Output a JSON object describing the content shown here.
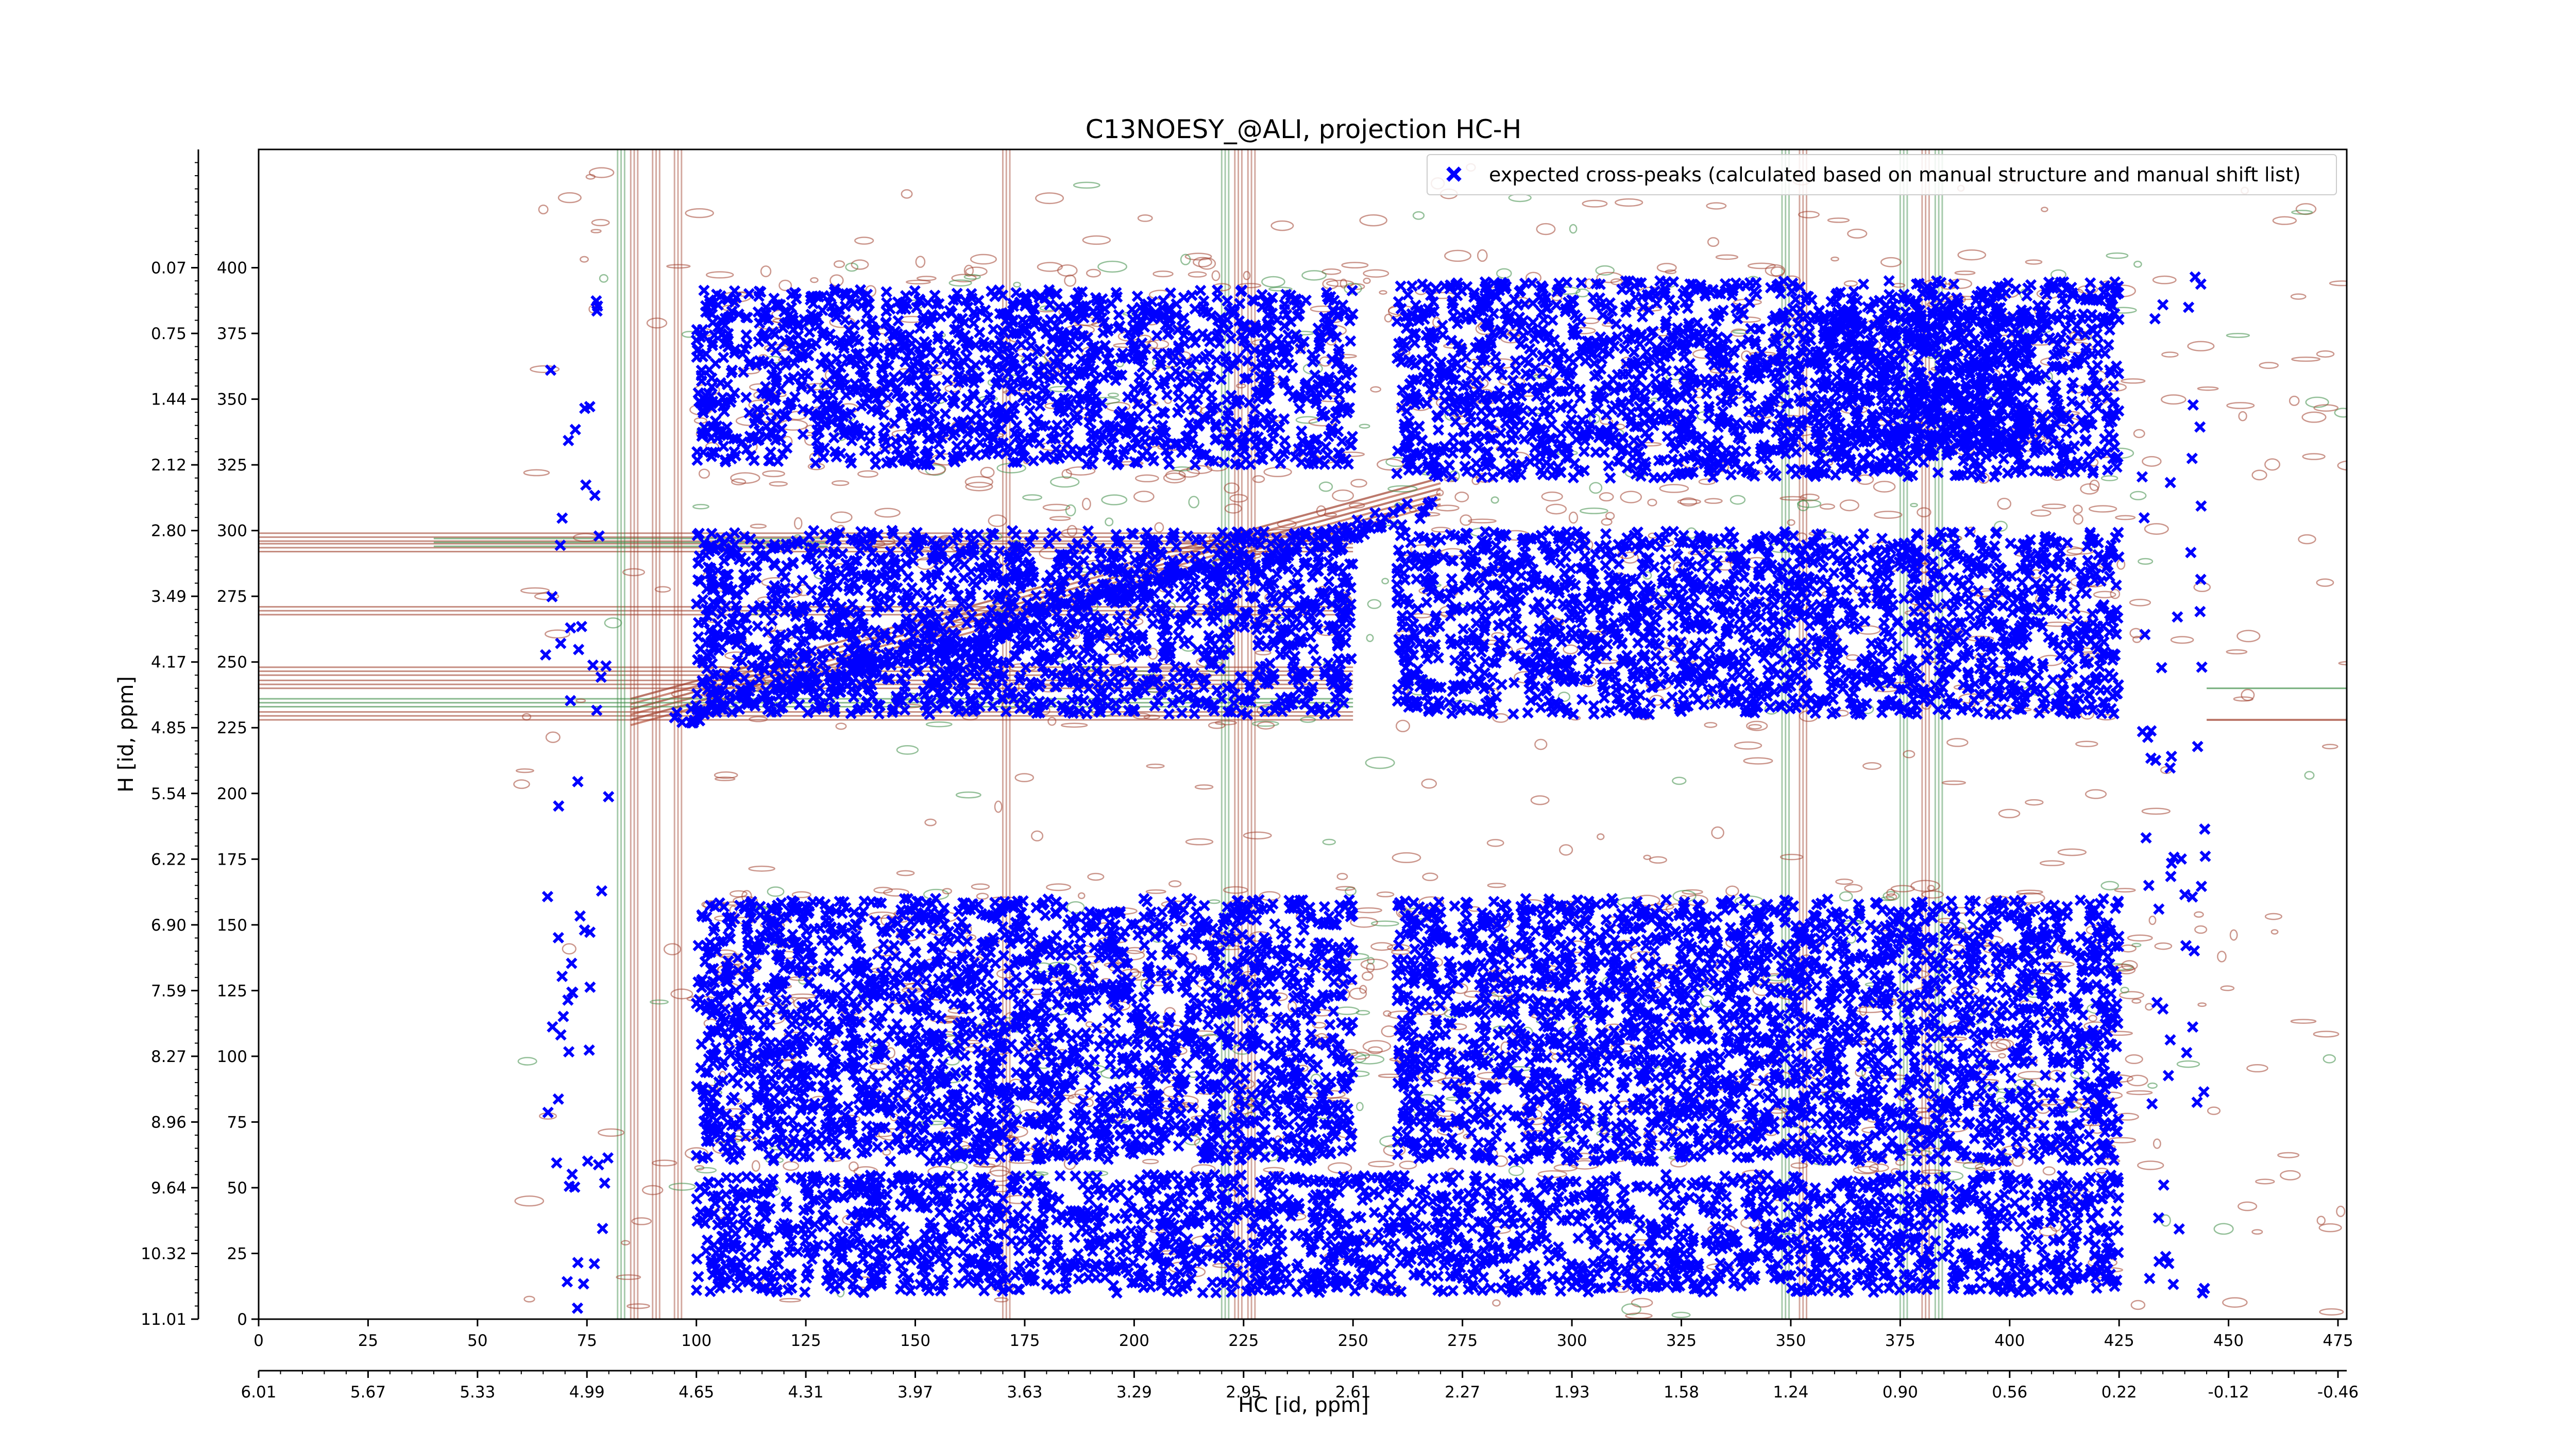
{
  "chart_data": {
    "type": "scatter",
    "title": "C13NOESY_@ALI, projection HC-H",
    "xlabel": "HC [id, ppm]",
    "ylabel": "H [id, ppm]",
    "xlim": [
      0,
      477
    ],
    "ylim": [
      0,
      445
    ],
    "x_ticks": [
      "0",
      "25",
      "50",
      "75",
      "100",
      "125",
      "150",
      "175",
      "200",
      "225",
      "250",
      "275",
      "300",
      "325",
      "350",
      "375",
      "400",
      "425",
      "450",
      "475"
    ],
    "x_tick_values": [
      0,
      25,
      50,
      75,
      100,
      125,
      150,
      175,
      200,
      225,
      250,
      275,
      300,
      325,
      350,
      375,
      400,
      425,
      450,
      475
    ],
    "x2_ticks": [
      "6.01",
      "5.67",
      "5.33",
      "4.99",
      "4.65",
      "4.31",
      "3.97",
      "3.63",
      "3.29",
      "2.95",
      "2.61",
      "2.27",
      "1.93",
      "1.58",
      "1.24",
      "0.90",
      "0.56",
      "0.22",
      "-0.12",
      "-0.46"
    ],
    "y_ticks": [
      "0",
      "25",
      "50",
      "75",
      "100",
      "125",
      "150",
      "175",
      "200",
      "225",
      "250",
      "275",
      "300",
      "325",
      "350",
      "375",
      "400"
    ],
    "y_tick_values": [
      0,
      25,
      50,
      75,
      100,
      125,
      150,
      175,
      200,
      225,
      250,
      275,
      300,
      325,
      350,
      375,
      400
    ],
    "y2_ticks": [
      "11.01",
      "10.32",
      "9.64",
      "8.96",
      "8.27",
      "7.59",
      "6.90",
      "6.22",
      "5.54",
      "4.85",
      "4.17",
      "3.49",
      "2.80",
      "2.12",
      "1.44",
      "0.75",
      "0.07"
    ],
    "legend": {
      "position": "top-right",
      "entries": [
        "expected cross-peaks (calculated based on manual structure and manual shift list)"
      ]
    },
    "series": [
      {
        "name": "expected cross-peaks (calculated based on manual structure and manual shift list)",
        "marker": "x",
        "color": "#0000ff",
        "regions": [
          {
            "x": [
              100,
              250
            ],
            "y": [
              325,
              392
            ]
          },
          {
            "x": [
              260,
              425
            ],
            "y": [
              320,
              395
            ]
          },
          {
            "x": [
              355,
              405
            ],
            "y": [
              330,
              385
            ]
          },
          {
            "x": [
              100,
              250
            ],
            "y": [
              230,
              300
            ]
          },
          {
            "x": [
              260,
              425
            ],
            "y": [
              230,
              300
            ]
          },
          {
            "x": [
              100,
              250
            ],
            "y": [
              60,
              160
            ]
          },
          {
            "x": [
              260,
              425
            ],
            "y": [
              60,
              160
            ]
          },
          {
            "x": [
              100,
              425
            ],
            "y": [
              10,
              55
            ]
          }
        ]
      }
    ],
    "contour_colors": {
      "positive": "#a0402d",
      "negative": "#3c8c46"
    },
    "grid": false
  }
}
